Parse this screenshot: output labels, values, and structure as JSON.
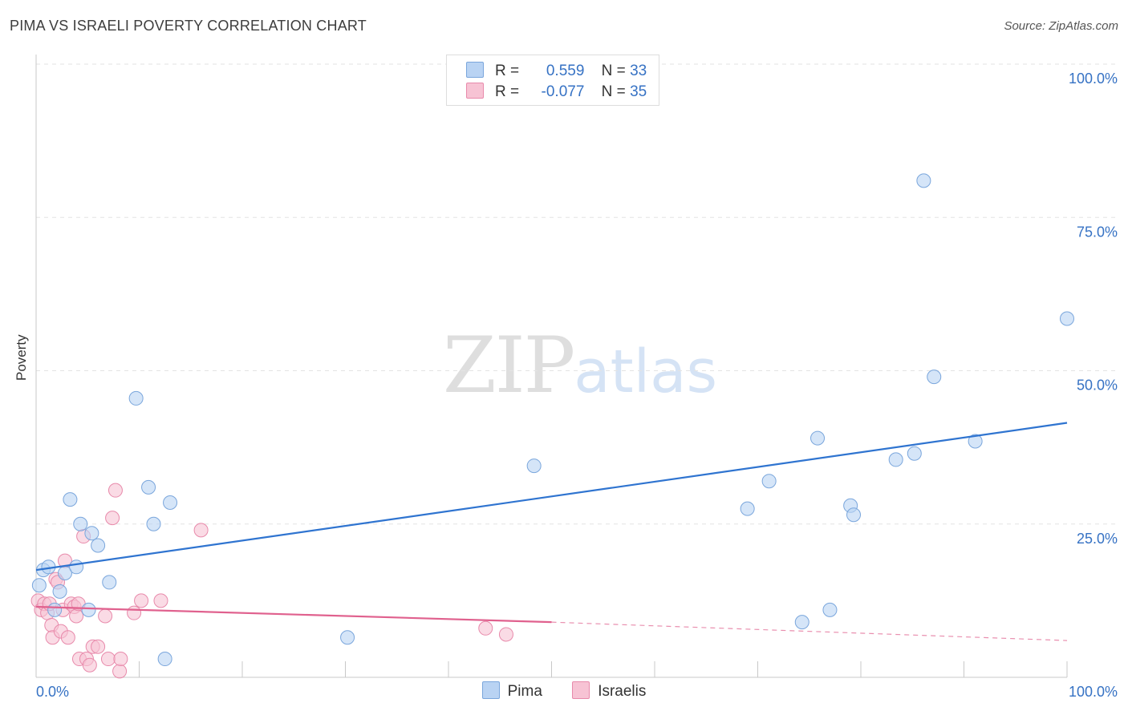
{
  "header": {
    "title": "PIMA VS ISRAELI POVERTY CORRELATION CHART",
    "source": "Source: ZipAtlas.com"
  },
  "watermark": {
    "zip": "ZIP",
    "atlas": "atlas"
  },
  "legend": {
    "pima": {
      "r_label": "R =",
      "r_value": "0.559",
      "n_label": "N =",
      "n_value": "33"
    },
    "israelis": {
      "r_label": "R =",
      "r_value": "-0.077",
      "n_label": "N =",
      "n_value": "35"
    }
  },
  "colors": {
    "pima_fill": "#b9d3f3",
    "pima_stroke": "#7aa6dc",
    "pima_line": "#2f74d0",
    "israeli_fill": "#f7c3d4",
    "israeli_stroke": "#e88aab",
    "israeli_line": "#e0618e",
    "tick_text": "#3672c4",
    "grid": "#e3e3e3"
  },
  "chart_data": {
    "type": "scatter",
    "title": "PIMA VS ISRAELI POVERTY CORRELATION CHART",
    "xlabel": "",
    "ylabel": "Poverty",
    "xlim": [
      0,
      100
    ],
    "ylim": [
      0,
      100
    ],
    "x_tick_labels": [
      "0.0%",
      "100.0%"
    ],
    "y_ticks": [
      25,
      50,
      75,
      100
    ],
    "y_tick_labels": [
      "25.0%",
      "50.0%",
      "75.0%",
      "100.0%"
    ],
    "series": [
      {
        "name": "Pima",
        "points": [
          [
            0.3,
            15.0
          ],
          [
            0.7,
            17.5
          ],
          [
            1.2,
            18.0
          ],
          [
            1.8,
            11.0
          ],
          [
            2.3,
            14.0
          ],
          [
            2.8,
            17.0
          ],
          [
            3.3,
            29.0
          ],
          [
            3.9,
            18.0
          ],
          [
            4.3,
            25.0
          ],
          [
            5.1,
            11.0
          ],
          [
            5.4,
            23.5
          ],
          [
            6.0,
            21.5
          ],
          [
            7.1,
            15.5
          ],
          [
            9.7,
            45.5
          ],
          [
            10.9,
            31.0
          ],
          [
            11.4,
            25.0
          ],
          [
            12.5,
            3.0
          ],
          [
            13.0,
            28.5
          ],
          [
            30.2,
            6.5
          ],
          [
            48.3,
            34.5
          ],
          [
            69.0,
            27.5
          ],
          [
            71.1,
            32.0
          ],
          [
            74.3,
            9.0
          ],
          [
            75.8,
            39.0
          ],
          [
            77.0,
            11.0
          ],
          [
            79.0,
            28.0
          ],
          [
            79.3,
            26.5
          ],
          [
            83.4,
            35.5
          ],
          [
            85.2,
            36.5
          ],
          [
            86.1,
            81.0
          ],
          [
            87.1,
            49.0
          ],
          [
            91.1,
            38.5
          ],
          [
            100.0,
            58.5
          ]
        ],
        "trend": {
          "x": [
            0,
            100
          ],
          "y": [
            17.5,
            41.5
          ]
        }
      },
      {
        "name": "Israelis",
        "points": [
          [
            0.2,
            12.5
          ],
          [
            0.5,
            11.0
          ],
          [
            0.8,
            12.0
          ],
          [
            1.1,
            10.5
          ],
          [
            1.3,
            12.0
          ],
          [
            1.5,
            8.5
          ],
          [
            1.6,
            6.5
          ],
          [
            1.9,
            16.0
          ],
          [
            2.1,
            15.5
          ],
          [
            2.4,
            7.5
          ],
          [
            2.6,
            11.0
          ],
          [
            2.8,
            19.0
          ],
          [
            3.1,
            6.5
          ],
          [
            3.4,
            12.0
          ],
          [
            3.7,
            11.5
          ],
          [
            3.9,
            10.0
          ],
          [
            4.1,
            12.0
          ],
          [
            4.2,
            3.0
          ],
          [
            4.6,
            23.0
          ],
          [
            4.9,
            3.0
          ],
          [
            5.2,
            2.0
          ],
          [
            5.5,
            5.0
          ],
          [
            6.0,
            5.0
          ],
          [
            6.7,
            10.0
          ],
          [
            7.0,
            3.0
          ],
          [
            7.4,
            26.0
          ],
          [
            7.7,
            30.5
          ],
          [
            8.1,
            1.0
          ],
          [
            8.2,
            3.0
          ],
          [
            9.5,
            10.5
          ],
          [
            10.2,
            12.5
          ],
          [
            12.1,
            12.5
          ],
          [
            16.0,
            24.0
          ],
          [
            43.6,
            8.0
          ],
          [
            45.6,
            7.0
          ]
        ],
        "trend": {
          "x": [
            0,
            50
          ],
          "y": [
            11.5,
            9.0
          ]
        },
        "trend_dashed": {
          "x": [
            50,
            100
          ],
          "y": [
            9.0,
            6.0
          ]
        }
      }
    ]
  },
  "bottom_legend": {
    "pima": "Pima",
    "israelis": "Israelis"
  }
}
